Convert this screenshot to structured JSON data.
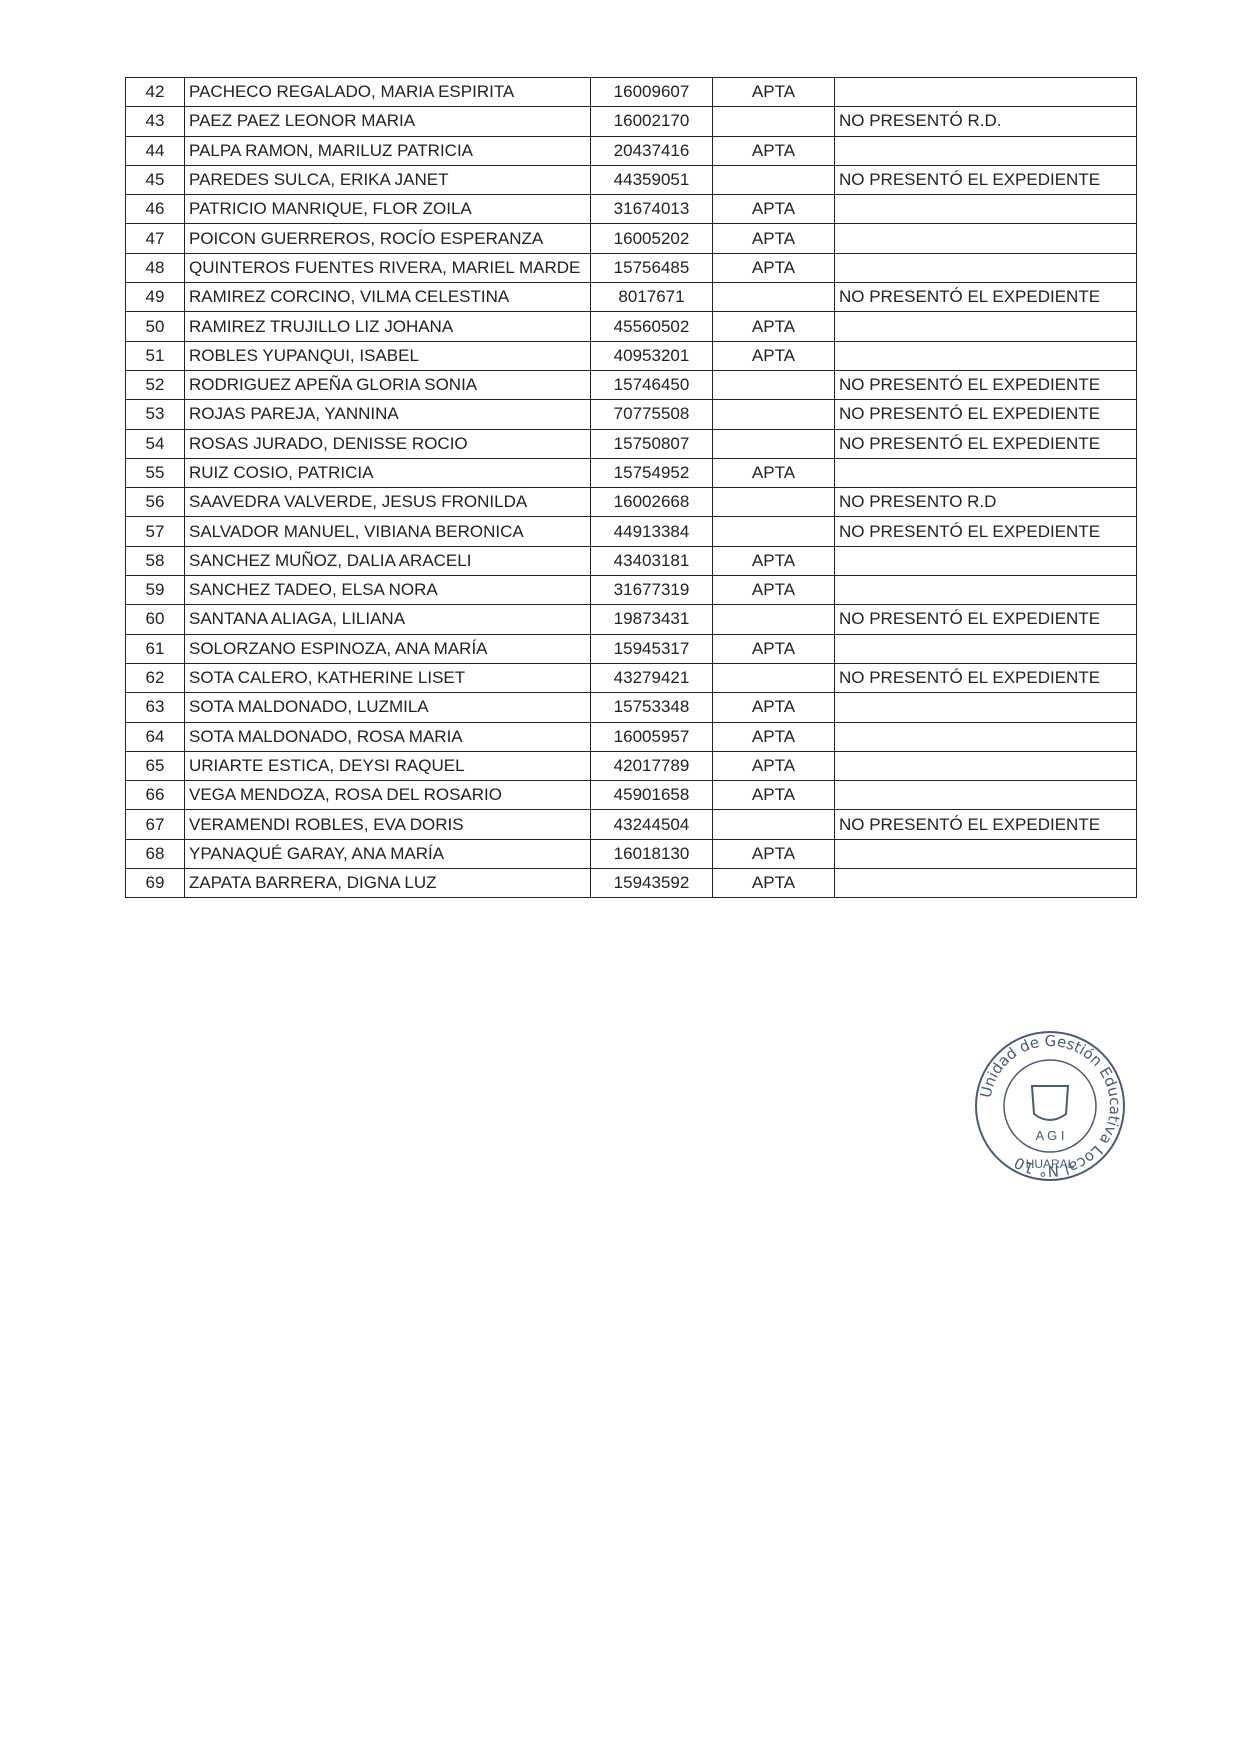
{
  "table": {
    "rows": [
      [
        42,
        "PACHECO REGALADO, MARIA ESPIRITA",
        "16009607",
        "APTA",
        null
      ],
      [
        43,
        "PAEZ PAEZ LEONOR MARIA",
        "16002170",
        null,
        "NO PRESENTÓ R.D."
      ],
      [
        44,
        "PALPA RAMON, MARILUZ PATRICIA",
        "20437416",
        "APTA",
        null
      ],
      [
        45,
        "PAREDES SULCA, ERIKA JANET",
        "44359051",
        null,
        "NO PRESENTÓ EL EXPEDIENTE"
      ],
      [
        46,
        "PATRICIO MANRIQUE, FLOR ZOILA",
        "31674013",
        "APTA",
        null
      ],
      [
        47,
        "POICON GUERREROS, ROCÍO ESPERANZA",
        "16005202",
        "APTA",
        null
      ],
      [
        48,
        "QUINTEROS FUENTES RIVERA, MARIEL MARDE",
        "15756485",
        "APTA",
        null
      ],
      [
        49,
        "RAMIREZ CORCINO, VILMA CELESTINA",
        "8017671",
        null,
        "NO PRESENTÓ EL EXPEDIENTE"
      ],
      [
        50,
        "RAMIREZ TRUJILLO LIZ JOHANA",
        "45560502",
        "APTA",
        null
      ],
      [
        51,
        "ROBLES YUPANQUI, ISABEL",
        "40953201",
        "APTA",
        null
      ],
      [
        52,
        "RODRIGUEZ APEÑA GLORIA SONIA",
        "15746450",
        null,
        "NO PRESENTÓ EL EXPEDIENTE"
      ],
      [
        53,
        "ROJAS PAREJA, YANNINA",
        "70775508",
        null,
        "NO PRESENTÓ EL EXPEDIENTE"
      ],
      [
        54,
        "ROSAS JURADO, DENISSE ROCIO",
        "15750807",
        null,
        "NO PRESENTÓ EL EXPEDIENTE"
      ],
      [
        55,
        "RUIZ COSIO, PATRICIA",
        "15754952",
        "APTA",
        null
      ],
      [
        56,
        "SAAVEDRA VALVERDE, JESUS FRONILDA",
        "16002668",
        null,
        "NO PRESENTO R.D"
      ],
      [
        57,
        "SALVADOR MANUEL, VIBIANA BERONICA",
        "44913384",
        null,
        "NO PRESENTÓ EL EXPEDIENTE"
      ],
      [
        58,
        "SANCHEZ MUÑOZ, DALIA ARACELI",
        "43403181",
        "APTA",
        null
      ],
      [
        59,
        "SANCHEZ TADEO, ELSA NORA",
        "31677319",
        "APTA",
        null
      ],
      [
        60,
        "SANTANA ALIAGA, LILIANA",
        "19873431",
        null,
        "NO PRESENTÓ EL EXPEDIENTE"
      ],
      [
        61,
        "SOLORZANO ESPINOZA, ANA MARÍA",
        "15945317",
        "APTA",
        null
      ],
      [
        62,
        "SOTA CALERO, KATHERINE LISET",
        "43279421",
        null,
        "NO PRESENTÓ EL EXPEDIENTE"
      ],
      [
        63,
        "SOTA MALDONADO, LUZMILA",
        "15753348",
        "APTA",
        null
      ],
      [
        64,
        "SOTA MALDONADO, ROSA MARIA",
        "16005957",
        "APTA",
        null
      ],
      [
        65,
        "URIARTE ESTICA, DEYSI RAQUEL",
        "42017789",
        "APTA",
        null
      ],
      [
        66,
        "VEGA MENDOZA, ROSA DEL ROSARIO",
        "45901658",
        "APTA",
        null
      ],
      [
        67,
        "VERAMENDI ROBLES, EVA DORIS",
        "43244504",
        null,
        "NO PRESENTÓ EL EXPEDIENTE"
      ],
      [
        68,
        "YPANAQUÉ GARAY, ANA MARÍA",
        "16018130",
        "APTA",
        null
      ],
      [
        69,
        "ZAPATA BARRERA, DIGNA LUZ",
        "15943592",
        "APTA",
        null
      ]
    ]
  },
  "stamp": {
    "ring_text": "Unidad de Gestión Educativa Local N° 10",
    "bottom_text": "HUARAL",
    "center_text": "A G I"
  }
}
